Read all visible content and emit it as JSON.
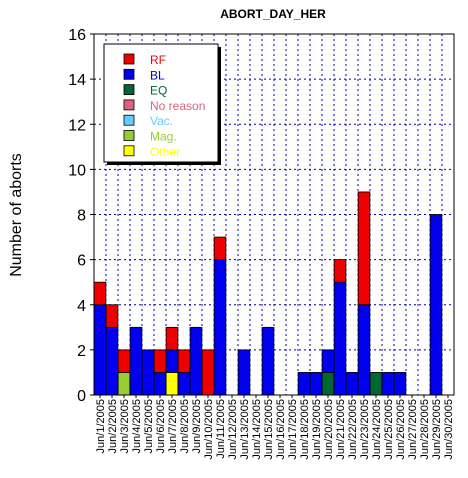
{
  "chart_data": {
    "type": "bar",
    "stacked": true,
    "title": "ABORT_DAY_HER",
    "xlabel": "",
    "ylabel": "Number of aborts",
    "ylim": [
      0,
      16
    ],
    "yticks": [
      0,
      2,
      4,
      6,
      8,
      10,
      12,
      14,
      16
    ],
    "grid": true,
    "legend_position": "top-left",
    "categories": [
      "Jun/1/2005",
      "Jun/2/2005",
      "Jun/3/2005",
      "Jun/4/2005",
      "Jun/5/2005",
      "Jun/6/2005",
      "Jun/7/2005",
      "Jun/8/2005",
      "Jun/9/2005",
      "Jun/10/2005",
      "Jun/11/2005",
      "Jun/12/2005",
      "Jun/13/2005",
      "Jun/14/2005",
      "Jun/15/2005",
      "Jun/16/2005",
      "Jun/17/2005",
      "Jun/18/2005",
      "Jun/19/2005",
      "Jun/20/2005",
      "Jun/21/2005",
      "Jun/22/2005",
      "Jun/23/2005",
      "Jun/24/2005",
      "Jun/25/2005",
      "Jun/26/2005",
      "Jun/27/2005",
      "Jun/28/2005",
      "Jun/29/2005",
      "Jun/30/2005"
    ],
    "series": [
      {
        "name": "Vac.",
        "color": "#66ccff",
        "values": [
          0,
          0,
          0,
          0,
          0,
          0,
          0,
          0,
          0,
          0,
          0,
          0,
          0,
          0,
          0,
          0,
          0,
          0,
          0,
          0,
          0,
          0,
          0,
          0,
          0,
          0,
          0,
          0,
          0,
          0
        ]
      },
      {
        "name": "Other",
        "color": "#ffff00",
        "values": [
          0,
          0,
          0,
          0,
          0,
          0,
          1,
          0,
          0,
          0,
          0,
          0,
          0,
          0,
          0,
          0,
          0,
          0,
          0,
          0,
          0,
          0,
          0,
          0,
          0,
          0,
          0,
          0,
          0,
          0
        ]
      },
      {
        "name": "Mag.",
        "color": "#99cc33",
        "values": [
          0,
          0,
          1,
          0,
          0,
          0,
          0,
          0,
          0,
          0,
          0,
          0,
          0,
          0,
          0,
          0,
          0,
          0,
          0,
          0,
          0,
          0,
          0,
          0,
          0,
          0,
          0,
          0,
          0,
          0
        ]
      },
      {
        "name": "No reason",
        "color": "#e0607e",
        "values": [
          0,
          0,
          0,
          0,
          0,
          0,
          0,
          0,
          0,
          0,
          0,
          0,
          0,
          0,
          0,
          0,
          0,
          0,
          0,
          0,
          0,
          0,
          0,
          0,
          0,
          0,
          0,
          0,
          0,
          0
        ]
      },
      {
        "name": "EQ",
        "color": "#006633",
        "values": [
          0,
          0,
          0,
          0,
          0,
          0,
          0,
          0,
          0,
          0,
          0,
          0,
          0,
          0,
          0,
          0,
          0,
          0,
          0,
          1,
          0,
          0,
          0,
          1,
          0,
          0,
          0,
          0,
          0,
          0
        ]
      },
      {
        "name": "BL",
        "color": "#0000ee",
        "values": [
          4,
          3,
          0,
          3,
          2,
          1,
          1,
          1,
          3,
          0,
          6,
          0,
          2,
          0,
          3,
          0,
          0,
          1,
          1,
          1,
          5,
          1,
          4,
          0,
          1,
          1,
          0,
          0,
          8,
          0
        ]
      },
      {
        "name": "RF",
        "color": "#ee0000",
        "values": [
          1,
          1,
          1,
          0,
          0,
          1,
          1,
          1,
          0,
          2,
          1,
          0,
          0,
          0,
          0,
          0,
          0,
          0,
          0,
          0,
          1,
          0,
          5,
          0,
          0,
          0,
          0,
          0,
          0,
          0
        ]
      }
    ],
    "legend_order": [
      "RF",
      "BL",
      "EQ",
      "No reason",
      "Vac.",
      "Mag.",
      "Other"
    ]
  }
}
